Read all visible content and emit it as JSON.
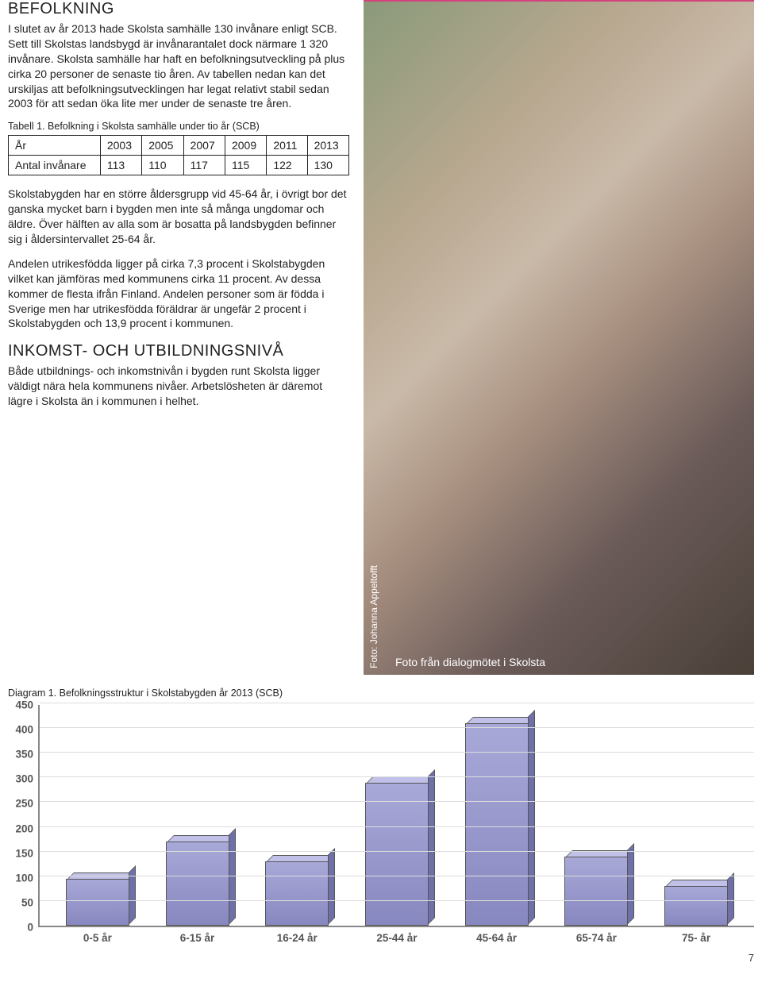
{
  "section1": {
    "title": "BEFOLKNING",
    "para1": "I slutet av år 2013 hade Skolsta samhälle 130 invånare enligt SCB. Sett till Skolstas landsbygd är invånarantalet dock närmare 1 320 invånare. Skolsta samhälle har haft en befolkningsutveckling på plus cirka 20 personer de senaste tio åren. Av tabellen nedan kan det urskiljas att befolkningsutvecklingen har legat relativt stabil sedan 2003 för att sedan öka lite mer under de senaste tre åren."
  },
  "table1": {
    "caption": "Tabell 1. Befolkning i Skolsta samhälle under tio år (SCB)",
    "header_label": "År",
    "row_label": "Antal invånare",
    "years": [
      "2003",
      "2005",
      "2007",
      "2009",
      "2011",
      "2013"
    ],
    "values": [
      "113",
      "110",
      "117",
      "115",
      "122",
      "130"
    ]
  },
  "para2": "Skolstabygden har en större åldersgrupp vid 45-64 år, i övrigt bor det ganska mycket barn i bygden men inte så många ungdomar och äldre. Över hälften av alla som är bosatta på landsbygden befinner sig i åldersintervallet 25-64 år.",
  "para3": "Andelen utrikesfödda ligger på cirka 7,3 procent i Skolstabygden vilket kan jämföras med kommunens cirka 11 procent. Av dessa kommer de flesta ifrån Finland. Andelen personer som är födda i Sverige men har utrikesfödda föräldrar är ungefär 2 procent i Skolstabygden och 13,9 procent i kommunen.",
  "section2": {
    "title": "INKOMST- OCH UTBILDNINGSNIVÅ",
    "para": "Både utbildnings- och inkomstnivån i bygden runt Skolsta ligger väldigt nära hela kommunens nivåer. Arbetslösheten är däremot lägre i Skolsta än i kommunen i helhet."
  },
  "photo": {
    "credit": "Foto: Johanna Appeltofft",
    "caption": "Foto från dialogmötet i Skolsta"
  },
  "diagram": {
    "caption": "Diagram 1. Befolkningsstruktur i Skolstabygden år 2013 (SCB)",
    "type": "bar",
    "ylim": [
      0,
      450
    ],
    "ytick_step": 50,
    "yticks": [
      "450",
      "400",
      "350",
      "300",
      "250",
      "200",
      "150",
      "100",
      "50",
      "0"
    ],
    "categories": [
      "0-5 år",
      "6-15 år",
      "16-24 år",
      "25-44 år",
      "45-64 år",
      "65-74 år",
      "75- år"
    ],
    "values": [
      95,
      170,
      130,
      290,
      410,
      140,
      80
    ],
    "bar_fill_top": "#a8a8d8",
    "bar_fill_bottom": "#8888c0",
    "bar_side": "#7070a8",
    "bar_top": "#c0c0e8",
    "bar_border": "#555555",
    "axis_color": "#888888",
    "grid_color": "#dddddd",
    "label_color": "#555555",
    "label_fontsize": 13.5,
    "background_color": "#ffffff"
  },
  "page_number": "7"
}
